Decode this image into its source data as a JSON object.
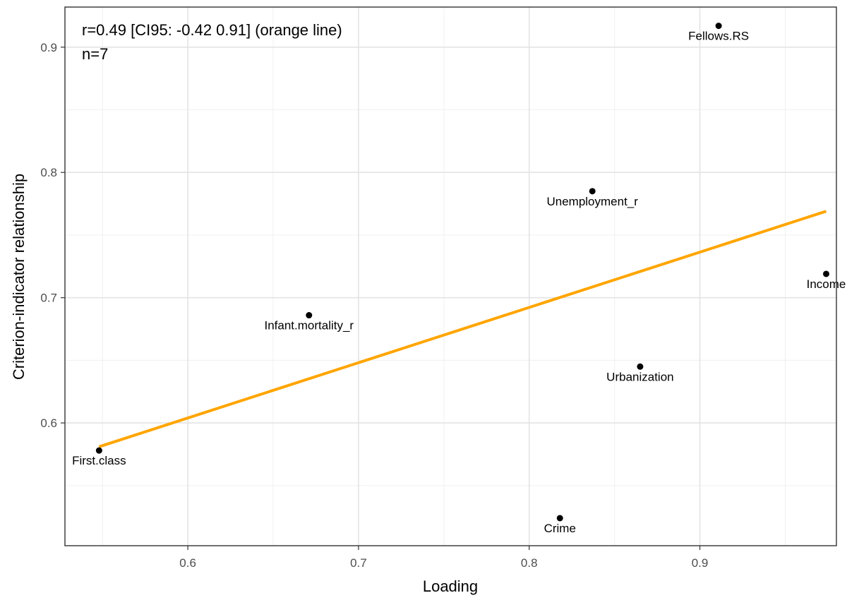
{
  "chart_data": {
    "type": "scatter",
    "title": "",
    "xlabel": "Loading",
    "ylabel": "Criterion-indicator relationship",
    "xlim": [
      0.528,
      0.98
    ],
    "ylim": [
      0.502,
      0.932
    ],
    "x_ticks": [
      0.6,
      0.7,
      0.8,
      0.9
    ],
    "x_tick_labels": [
      "0.6",
      "0.7",
      "0.8",
      "0.9"
    ],
    "y_ticks": [
      0.6,
      0.7,
      0.8,
      0.9
    ],
    "y_tick_labels": [
      "0.6",
      "0.7",
      "0.8",
      "0.9"
    ],
    "grid": true,
    "points": [
      {
        "label": "Fellows.RS",
        "x": 0.911,
        "y": 0.917
      },
      {
        "label": "Unemployment_r",
        "x": 0.837,
        "y": 0.785
      },
      {
        "label": "Income",
        "x": 0.974,
        "y": 0.719
      },
      {
        "label": "Infant.mortality_r",
        "x": 0.671,
        "y": 0.686
      },
      {
        "label": "Urbanization",
        "x": 0.865,
        "y": 0.645
      },
      {
        "label": "First.class",
        "x": 0.548,
        "y": 0.578
      },
      {
        "label": "Crime",
        "x": 0.818,
        "y": 0.524
      }
    ],
    "fit_line": {
      "x": [
        0.548,
        0.974
      ],
      "y": [
        0.581,
        0.769
      ],
      "color": "#FFA500"
    },
    "annotations": [
      "r=0.49 [CI95: -0.42 0.91] (orange line)",
      "n=7"
    ]
  }
}
